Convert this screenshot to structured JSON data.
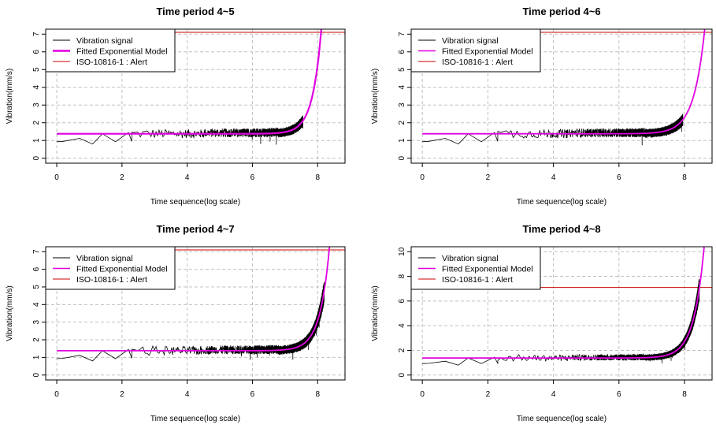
{
  "chart_data": [
    {
      "type": "line",
      "title": "Time period 4~5",
      "xlabel": "Time sequence(log scale)",
      "ylabel": "Vibration(mm/s)",
      "xlim": [
        -0.34,
        8.84
      ],
      "ylim": [
        -0.28,
        7.28
      ],
      "xticks": [
        0,
        2,
        4,
        6,
        8
      ],
      "yticks": [
        0,
        1,
        2,
        3,
        4,
        5,
        6,
        7
      ],
      "grid": true,
      "legend_position": "top-left",
      "legend": [
        "Vibration signal",
        "Fitted Exponential Model",
        "ISO-10816-1 : Alert"
      ],
      "alert_level": 7.1,
      "fitted_model": {
        "baseline": 1.38,
        "reaches_7_at_x": 8.1,
        "rate": 3.7
      },
      "signal": {
        "early_points": [
          [
            0,
            0.93
          ],
          [
            0.2,
            0.95
          ],
          [
            0.7,
            1.12
          ],
          [
            1.1,
            0.8
          ],
          [
            1.4,
            1.38
          ],
          [
            1.8,
            0.93
          ],
          [
            2.2,
            1.45
          ],
          [
            2.3,
            0.95
          ]
        ],
        "end_x": 7.55,
        "noise_amplitude": 0.25
      },
      "colors": {
        "signal": "#000000",
        "model": "#e000e0",
        "alert": "#cc0000"
      }
    },
    {
      "type": "line",
      "title": "Time period 4~6",
      "xlabel": "Time sequence(log scale)",
      "ylabel": "Vibration(mm/s)",
      "xlim": [
        -0.34,
        8.84
      ],
      "ylim": [
        -0.28,
        7.28
      ],
      "xticks": [
        0,
        2,
        4,
        6,
        8
      ],
      "yticks": [
        0,
        1,
        2,
        3,
        4,
        5,
        6,
        7
      ],
      "grid": true,
      "legend_position": "top-left",
      "legend": [
        "Vibration signal",
        "Fitted Exponential Model",
        "ISO-10816-1 : Alert"
      ],
      "alert_level": 7.1,
      "fitted_model": {
        "baseline": 1.38,
        "reaches_7_at_x": 8.6,
        "rate": 3.0
      },
      "signal": {
        "early_points": [
          [
            0,
            0.93
          ],
          [
            0.2,
            0.95
          ],
          [
            0.7,
            1.12
          ],
          [
            1.1,
            0.8
          ],
          [
            1.4,
            1.38
          ],
          [
            1.8,
            0.93
          ],
          [
            2.2,
            1.45
          ],
          [
            2.3,
            0.95
          ]
        ],
        "end_x": 7.95,
        "noise_amplitude": 0.25
      },
      "colors": {
        "signal": "#000000",
        "model": "#e000e0",
        "alert": "#cc0000"
      }
    },
    {
      "type": "line",
      "title": "Time period 4~7",
      "xlabel": "Time sequence(log scale)",
      "ylabel": "Vibration(mm/s)",
      "xlim": [
        -0.34,
        8.84
      ],
      "ylim": [
        -0.28,
        7.28
      ],
      "xticks": [
        0,
        2,
        4,
        6,
        8
      ],
      "yticks": [
        0,
        1,
        2,
        3,
        4,
        5,
        6,
        7
      ],
      "grid": true,
      "legend_position": "top-left",
      "legend": [
        "Vibration signal",
        "Fitted Exponential Model",
        "ISO-10816-1 : Alert"
      ],
      "alert_level": 7.1,
      "fitted_model": {
        "baseline": 1.38,
        "reaches_7_at_x": 8.35,
        "rate": 3.4
      },
      "signal": {
        "early_points": [
          [
            0,
            0.93
          ],
          [
            0.2,
            0.95
          ],
          [
            0.7,
            1.12
          ],
          [
            1.1,
            0.8
          ],
          [
            1.4,
            1.38
          ],
          [
            1.8,
            0.93
          ],
          [
            2.2,
            1.45
          ],
          [
            2.3,
            0.95
          ]
        ],
        "end_x": 8.2,
        "noise_amplitude": 0.25
      },
      "colors": {
        "signal": "#000000",
        "model": "#e000e0",
        "alert": "#cc0000"
      }
    },
    {
      "type": "line",
      "title": "Time period 4~8",
      "xlabel": "Time sequence(log scale)",
      "ylabel": "Vibration(mm/s)",
      "xlim": [
        -0.34,
        8.84
      ],
      "ylim": [
        -0.4,
        10.4
      ],
      "xticks": [
        0,
        2,
        4,
        6,
        8
      ],
      "yticks": [
        0,
        2,
        4,
        6,
        8,
        10
      ],
      "grid": true,
      "legend_position": "top-left",
      "legend": [
        "Vibration signal",
        "Fitted Exponential Model",
        "ISO-10816-1 : Alert"
      ],
      "alert_level": 7.1,
      "fitted_model": {
        "baseline": 1.38,
        "reaches_7_at_x": 8.45,
        "rate": 3.2
      },
      "signal": {
        "early_points": [
          [
            0,
            0.93
          ],
          [
            0.2,
            0.95
          ],
          [
            0.7,
            1.12
          ],
          [
            1.1,
            0.8
          ],
          [
            1.4,
            1.38
          ],
          [
            1.8,
            0.93
          ],
          [
            2.2,
            1.45
          ],
          [
            2.3,
            0.95
          ]
        ],
        "end_x": 8.45,
        "noise_amplitude": 0.25
      },
      "colors": {
        "signal": "#000000",
        "model": "#e000e0",
        "alert": "#cc0000"
      }
    }
  ]
}
